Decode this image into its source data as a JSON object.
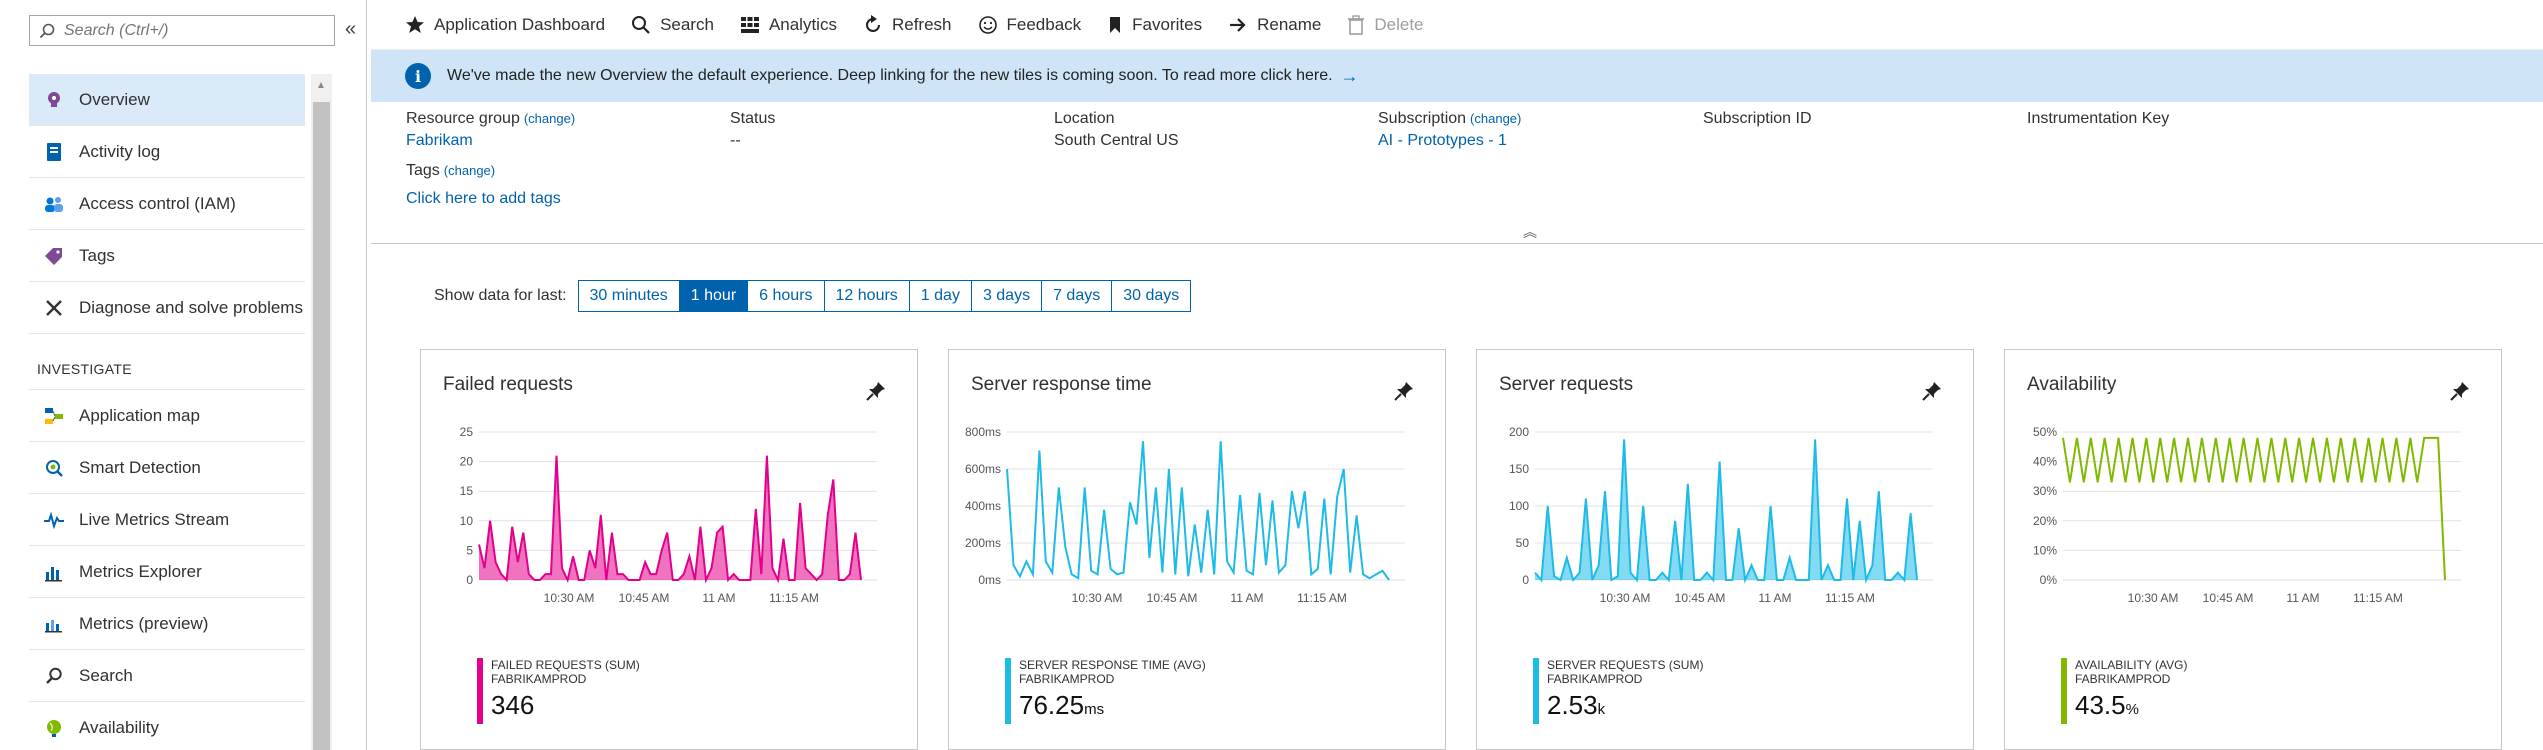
{
  "search": {
    "placeholder": "Search (Ctrl+/)"
  },
  "nav": {
    "collapse_glyph": "«",
    "items": [
      {
        "label": "Overview",
        "icon": "lightbulb-icon"
      },
      {
        "label": "Activity log",
        "icon": "log-icon"
      },
      {
        "label": "Access control (IAM)",
        "icon": "people-icon"
      },
      {
        "label": "Tags",
        "icon": "tag-icon"
      },
      {
        "label": "Diagnose and solve problems",
        "icon": "wrench-icon"
      }
    ],
    "section": "INVESTIGATE",
    "investigate": [
      {
        "label": "Application map",
        "icon": "app-map-icon"
      },
      {
        "label": "Smart Detection",
        "icon": "smart-detection-icon"
      },
      {
        "label": "Live Metrics Stream",
        "icon": "pulse-icon"
      },
      {
        "label": "Metrics Explorer",
        "icon": "bar-chart-icon"
      },
      {
        "label": "Metrics (preview)",
        "icon": "metrics-preview-icon"
      },
      {
        "label": "Search",
        "icon": "search-icon"
      },
      {
        "label": "Availability",
        "icon": "globe-icon"
      }
    ]
  },
  "toolbar": {
    "app_dashboard": "Application Dashboard",
    "search": "Search",
    "analytics": "Analytics",
    "refresh": "Refresh",
    "feedback": "Feedback",
    "favorites": "Favorites",
    "rename": "Rename",
    "delete": "Delete"
  },
  "banner": {
    "text": "We've made the new Overview the default experience. Deep linking for the new tiles is coming soon. To read more click here.",
    "arrow": "→"
  },
  "essentials": {
    "resource_group_label": "Resource group",
    "change": "(change)",
    "resource_group_value": "Fabrikam",
    "status_label": "Status",
    "status_value": "--",
    "location_label": "Location",
    "location_value": "South Central US",
    "subscription_label": "Subscription",
    "subscription_value": "AI - Prototypes - 1",
    "subscription_id_label": "Subscription ID",
    "instrumentation_key_label": "Instrumentation Key",
    "tags_label": "Tags",
    "tags_link": "Click here to add tags",
    "collapse_glyph": "︽"
  },
  "timerange": {
    "label": "Show data for last:",
    "options": [
      "30 minutes",
      "1 hour",
      "6 hours",
      "12 hours",
      "1 day",
      "3 days",
      "7 days",
      "30 days"
    ],
    "selected": "1 hour"
  },
  "colors": {
    "accent": "#0062ad",
    "failed": "#e3008c",
    "response": "#1ebbe9",
    "requests": "#1ebbe9",
    "availability": "#7fba00"
  },
  "tiles": [
    {
      "title": "Failed requests",
      "legend_name": "FAILED REQUESTS (SUM)",
      "legend_sub": "FABRIKAMPROD",
      "value": "346",
      "unit": ""
    },
    {
      "title": "Server response time",
      "legend_name": "SERVER RESPONSE TIME (AVG)",
      "legend_sub": "FABRIKAMPROD",
      "value": "76.25",
      "unit": "ms"
    },
    {
      "title": "Server requests",
      "legend_name": "SERVER REQUESTS (SUM)",
      "legend_sub": "FABRIKAMPROD",
      "value": "2.53",
      "unit": "k"
    },
    {
      "title": "Availability",
      "legend_name": "AVAILABILITY (AVG)",
      "legend_sub": "FABRIKAMPROD",
      "value": "43.5",
      "unit": "%"
    }
  ],
  "chart_data": [
    {
      "type": "area",
      "title": "Failed requests",
      "ylim": [
        0,
        25
      ],
      "yticks": [
        "25",
        "20",
        "15",
        "10",
        "5",
        "0"
      ],
      "xticks": [
        "10:30 AM",
        "10:45 AM",
        "11 AM",
        "11:15 AM"
      ],
      "series": [
        {
          "name": "FAILED REQUESTS (SUM)",
          "values": [
            6,
            2,
            10,
            3,
            1,
            0,
            9,
            3,
            8,
            1,
            0,
            0,
            1,
            1,
            21,
            2,
            0,
            4,
            0,
            0,
            5,
            2,
            11,
            0,
            8,
            1,
            1,
            0,
            0,
            0,
            3,
            1,
            1,
            5,
            8,
            0,
            0,
            1,
            4,
            0,
            9,
            0,
            2,
            8,
            9,
            0,
            1,
            0,
            0,
            0,
            12,
            1,
            21,
            2,
            0,
            7,
            0,
            0,
            13,
            2,
            1,
            0,
            1,
            11,
            17,
            0,
            0,
            1,
            8,
            0
          ]
        }
      ]
    },
    {
      "type": "line",
      "title": "Server response time",
      "ylim": [
        0,
        800
      ],
      "yticks": [
        "800ms",
        "600ms",
        "400ms",
        "200ms",
        "0ms"
      ],
      "xticks": [
        "10:30 AM",
        "10:45 AM",
        "11 AM",
        "11:15 AM"
      ],
      "series": [
        {
          "name": "SERVER RESPONSE TIME (AVG)",
          "values": [
            600,
            80,
            20,
            100,
            30,
            700,
            100,
            40,
            500,
            180,
            30,
            10,
            500,
            50,
            30,
            380,
            60,
            30,
            40,
            420,
            300,
            750,
            120,
            500,
            40,
            600,
            30,
            500,
            20,
            300,
            40,
            380,
            30,
            750,
            100,
            40,
            460,
            50,
            30,
            470,
            80,
            430,
            40,
            80,
            480,
            280,
            480,
            30,
            60,
            440,
            30,
            450,
            600,
            40,
            350,
            30,
            10,
            30,
            50,
            0
          ]
        }
      ]
    },
    {
      "type": "area",
      "title": "Server requests",
      "ylim": [
        0,
        200
      ],
      "yticks": [
        "200",
        "150",
        "100",
        "50",
        "0"
      ],
      "xticks": [
        "10:30 AM",
        "10:45 AM",
        "11 AM",
        "11:15 AM"
      ],
      "series": [
        {
          "name": "SERVER REQUESTS (SUM)",
          "values": [
            10,
            0,
            100,
            5,
            0,
            30,
            0,
            10,
            110,
            0,
            20,
            120,
            0,
            5,
            190,
            10,
            0,
            100,
            0,
            0,
            10,
            0,
            80,
            0,
            130,
            0,
            0,
            10,
            0,
            160,
            0,
            0,
            70,
            0,
            20,
            0,
            0,
            100,
            0,
            0,
            30,
            0,
            0,
            0,
            190,
            0,
            20,
            0,
            0,
            110,
            0,
            80,
            0,
            20,
            120,
            0,
            0,
            10,
            0,
            90,
            0
          ]
        }
      ]
    },
    {
      "type": "line",
      "title": "Availability",
      "ylim": [
        0,
        50
      ],
      "yticks": [
        "50%",
        "40%",
        "30%",
        "20%",
        "10%",
        "0%"
      ],
      "xticks": [
        "10:30 AM",
        "10:45 AM",
        "11 AM",
        "11:15 AM"
      ],
      "series": [
        {
          "name": "AVAILABILITY (AVG)",
          "values": [
            48,
            33,
            48,
            33,
            48,
            33,
            48,
            33,
            48,
            33,
            48,
            33,
            48,
            33,
            48,
            33,
            48,
            33,
            48,
            33,
            48,
            33,
            48,
            33,
            48,
            33,
            48,
            33,
            48,
            33,
            48,
            33,
            48,
            33,
            48,
            33,
            48,
            33,
            48,
            33,
            48,
            33,
            48,
            33,
            48,
            33,
            48,
            33,
            48,
            33,
            48,
            33,
            48,
            48,
            48,
            0
          ]
        }
      ]
    }
  ]
}
